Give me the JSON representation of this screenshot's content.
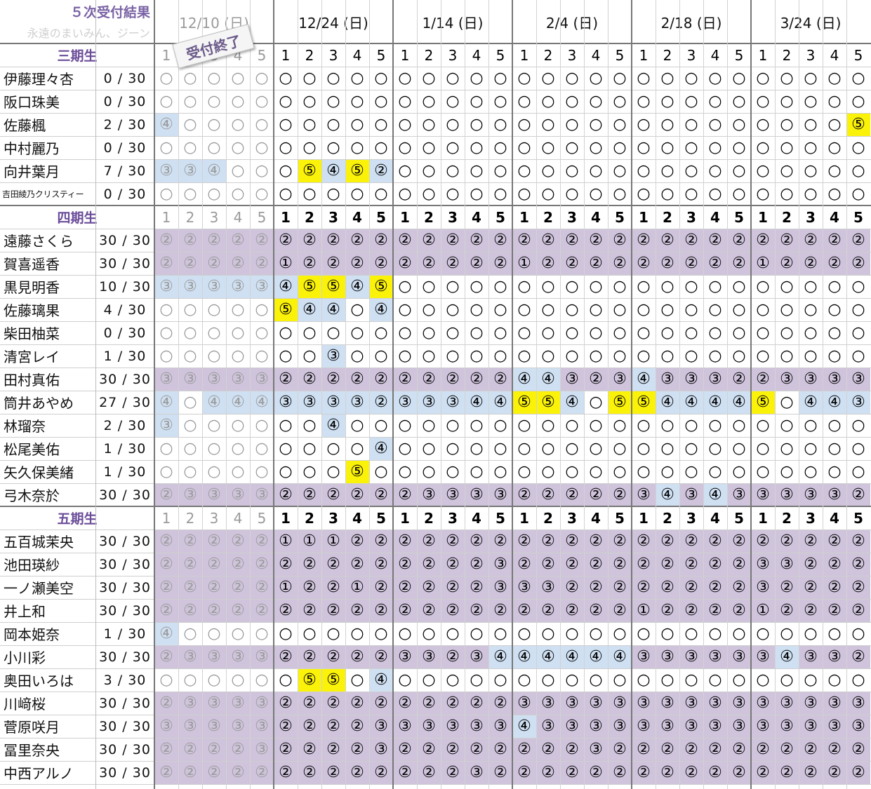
{
  "title": "５次受付結果",
  "subtitle": "永遠のまいみん、ジーン",
  "stamp": "受付終了",
  "dates": [
    "12/10 (日)",
    "12/24 (日)",
    "1/14 (日)",
    "2/4 (日)",
    "2/18 (日)",
    "3/24 (日)"
  ],
  "slot_numbers": [
    "1",
    "2",
    "3",
    "4",
    "5"
  ],
  "max_label": "30",
  "symbols": {
    "0": "○",
    "1": "①",
    "2": "②",
    "3": "③",
    "4": "④",
    "5": "⑤"
  },
  "background_colors": {
    "none": "#ffffff",
    "purple": "#cfc4dc",
    "blue": "#cfe0f2",
    "yellow": "#fbf20a"
  },
  "groups": [
    {
      "label": "三期生",
      "members": [
        {
          "name": "伊藤理々杏",
          "count": "0",
          "slots": "000000000000000000000000000000"
        },
        {
          "name": "阪口珠美",
          "count": "0",
          "slots": "000000000000000000000000000000"
        },
        {
          "name": "佐藤楓",
          "count": "2",
          "slots": "400000000000000000000000000005"
        },
        {
          "name": "中村麗乃",
          "count": "0",
          "slots": "000000000000000000000000000000"
        },
        {
          "name": "向井葉月",
          "count": "7",
          "slots": "334000545200000000000000000000"
        },
        {
          "name": "吉田綾乃クリスティー",
          "count": "0",
          "slots": "000000000000000000000000000000"
        }
      ]
    },
    {
      "label": "四期生",
      "members": [
        {
          "name": "遠藤さくら",
          "count": "30",
          "slots": "222222222222222222222222222222"
        },
        {
          "name": "賀喜遥香",
          "count": "30",
          "slots": "222221222222222122222222212222"
        },
        {
          "name": "黒見明香",
          "count": "10",
          "slots": "333334554500000000000000000000"
        },
        {
          "name": "佐藤璃果",
          "count": "4",
          "slots": "000005440400000000000000000000"
        },
        {
          "name": "柴田柚菜",
          "count": "0",
          "slots": "000000000000000000000000000000"
        },
        {
          "name": "清宮レイ",
          "count": "1",
          "slots": "000000030000000000000000000000"
        },
        {
          "name": "田村真佑",
          "count": "30",
          "slots": "333332222222222443234333223333"
        },
        {
          "name": "筒井あやめ",
          "count": "27",
          "slots": "404443333233344554055444450443"
        },
        {
          "name": "林瑠奈",
          "count": "2",
          "slots": "300000040000000000000000000000"
        },
        {
          "name": "松尾美佑",
          "count": "1",
          "slots": "000000000400000000000000000000"
        },
        {
          "name": "矢久保美緒",
          "count": "1",
          "slots": "000000005000000000000000000000"
        },
        {
          "name": "弓木奈於",
          "count": "30",
          "slots": "233332222223333222223434333332"
        }
      ]
    },
    {
      "label": "五期生",
      "members": [
        {
          "name": "五百城茉央",
          "count": "30",
          "slots": "222221112222222222222222222222"
        },
        {
          "name": "池田瑛紗",
          "count": "30",
          "slots": "222222222222223222222222233222"
        },
        {
          "name": "一ノ瀬美空",
          "count": "30",
          "slots": "222221221222223332222222232222"
        },
        {
          "name": "井上和",
          "count": "30",
          "slots": "222222222222222222221222212222"
        },
        {
          "name": "岡本姫奈",
          "count": "1",
          "slots": "400000000000000000000000000000"
        },
        {
          "name": "小川彩",
          "count": "30",
          "slots": "233332222233234444443333334332"
        },
        {
          "name": "奥田いろは",
          "count": "3",
          "slots": "000000550400000000000000000000"
        },
        {
          "name": "川﨑桜",
          "count": "30",
          "slots": "233332222222222333333333333333"
        },
        {
          "name": "菅原咲月",
          "count": "30",
          "slots": "333332222333333433333333333333"
        },
        {
          "name": "冨里奈央",
          "count": "30",
          "slots": "222232222322222222322222222222"
        },
        {
          "name": "中西アルノ",
          "count": "30",
          "slots": "222222222222232222222222222222"
        }
      ]
    }
  ]
}
